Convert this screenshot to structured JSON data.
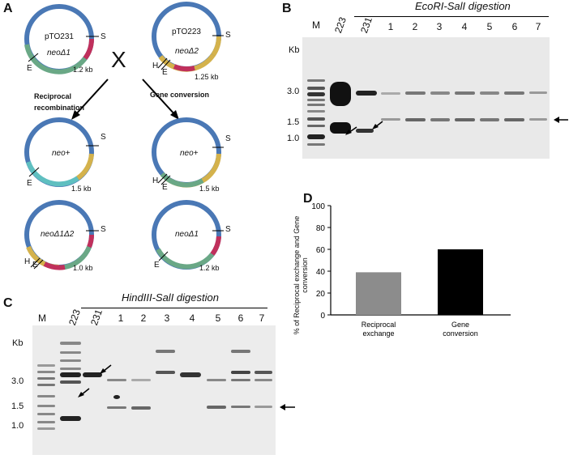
{
  "panels": {
    "a": "A",
    "b": "B",
    "c": "C",
    "d": "D"
  },
  "panel_a": {
    "cross_symbol": "X",
    "plasmid_top_left": {
      "name": "pTO231",
      "gene": "neoΔ1",
      "size": "1.2 kb",
      "sites": [
        "S",
        "E"
      ]
    },
    "plasmid_top_right": {
      "name": "pTO223",
      "gene": "neoΔ2",
      "size": "1.25 kb",
      "sites": [
        "S",
        "H",
        "E"
      ]
    },
    "arrow_left_label": "Reciprocal recombination",
    "arrow_right_label": "Gene conversion",
    "mid_left": {
      "gene": "neo+",
      "size": "1.5 kb",
      "sites": [
        "S",
        "E"
      ]
    },
    "mid_right": {
      "gene": "neo+",
      "size": "1.5 kb",
      "sites": [
        "S",
        "H",
        "E"
      ]
    },
    "bot_left": {
      "gene": "neoΔ1Δ2",
      "size": "1.0 kb",
      "sites": [
        "S",
        "H",
        "E"
      ]
    },
    "bot_right": {
      "gene": "neoΔ1",
      "size": "1.2 kb",
      "sites": [
        "S",
        "E"
      ]
    }
  },
  "panel_b": {
    "title": "EcoRI-SalI digestion",
    "kb_label": "Kb",
    "lanes": [
      "M",
      "223",
      "231",
      "1",
      "2",
      "3",
      "4",
      "5",
      "6",
      "7"
    ],
    "markers": [
      "3.0",
      "1.5",
      "1.0"
    ]
  },
  "panel_c": {
    "title": "HindIII-SalI digestion",
    "kb_label": "Kb",
    "lanes": [
      "M",
      "223",
      "231",
      "1",
      "2",
      "3",
      "4",
      "5",
      "6",
      "7"
    ],
    "markers": [
      "3.0",
      "1.5",
      "1.0"
    ]
  },
  "panel_d": {
    "chart_data": {
      "type": "bar",
      "categories": [
        "Reciprocal exchange",
        "Gene conversion"
      ],
      "values": [
        39,
        60
      ],
      "colors": [
        "#8c8c8c",
        "#000000"
      ],
      "ylabel": "% of Reciprocal exchange and Gene conversion",
      "ylim": [
        0,
        100
      ],
      "yticks": [
        0,
        20,
        40,
        60,
        80,
        100
      ],
      "ytick_labels": [
        "0",
        "20",
        "40",
        "60",
        "80",
        "100"
      ],
      "category_labels": [
        [
          "Reciprocal",
          "exchange"
        ],
        [
          "Gene",
          "conversion"
        ]
      ]
    }
  }
}
